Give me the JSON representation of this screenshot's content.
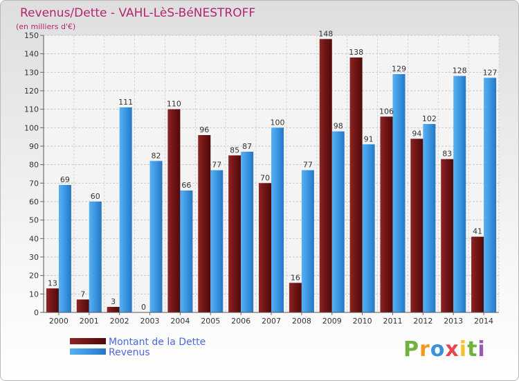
{
  "chart_data": {
    "type": "bar",
    "title": "Revenus/Dette - VAHL-LèS-BéNESTROFF",
    "subtitle": "(en milliers d'€)",
    "categories": [
      "2000",
      "2001",
      "2002",
      "2003",
      "2004",
      "2005",
      "2006",
      "2007",
      "2008",
      "2009",
      "2010",
      "2011",
      "2012",
      "2013",
      "2014"
    ],
    "series": [
      {
        "name": "Montant de la Dette",
        "color": "#7a1818",
        "values": [
          13,
          7,
          3,
          0,
          110,
          96,
          85,
          70,
          16,
          148,
          138,
          106,
          94,
          83,
          41
        ]
      },
      {
        "name": "Revenus",
        "color": "#3d9ae4",
        "values": [
          69,
          60,
          111,
          82,
          66,
          77,
          87,
          100,
          77,
          98,
          91,
          129,
          102,
          128,
          127
        ]
      }
    ],
    "ylim": [
      0,
      150
    ],
    "yticks": [
      0,
      10,
      20,
      30,
      40,
      50,
      60,
      70,
      80,
      90,
      100,
      110,
      120,
      130,
      140,
      150
    ],
    "grid": true,
    "legend": "bottom-left"
  },
  "brand": {
    "letters": [
      "P",
      "r",
      "o",
      "x",
      "i",
      "t",
      "i"
    ],
    "colors": [
      "#6fb23c",
      "#f29a1f",
      "#3c8fd9",
      "#e8474a",
      "#f2c12e",
      "#6fb23c",
      "#9b59b6"
    ]
  },
  "colors": {
    "title": "#b3266e",
    "legend_text": "#4a67e0",
    "axis_text": "#333333"
  }
}
